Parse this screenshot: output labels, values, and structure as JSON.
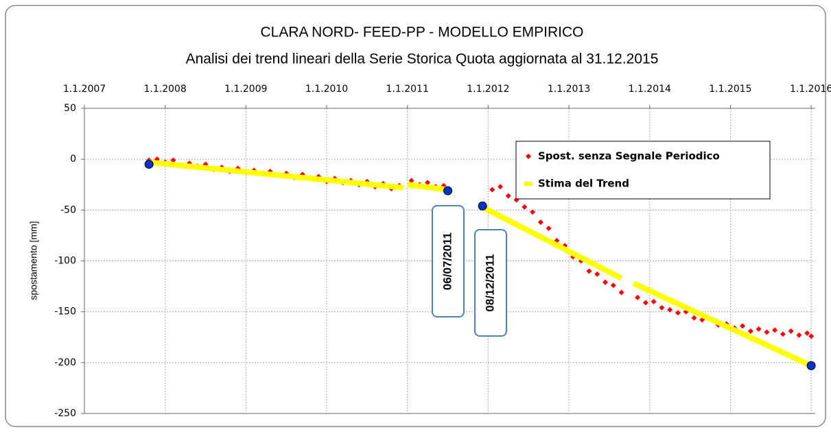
{
  "chart_data": {
    "type": "scatter",
    "title": "CLARA NORD- FEED-PP - MODELLO EMPIRICO",
    "subtitle": "Analisi dei trend lineari della Serie Storica Quota  aggiornata al 31.12.2015",
    "ylabel": "spostamento [mm]",
    "xlim": [
      2007,
      2016.05
    ],
    "ylim": [
      -250,
      50
    ],
    "xticks": [
      {
        "value": 2007,
        "label": "1.1.2007"
      },
      {
        "value": 2008,
        "label": "1.1.2008"
      },
      {
        "value": 2009,
        "label": "1.1.2009"
      },
      {
        "value": 2010,
        "label": "1.1.2010"
      },
      {
        "value": 2011,
        "label": "1.1.2011"
      },
      {
        "value": 2012,
        "label": "1.1.2012"
      },
      {
        "value": 2013,
        "label": "1.1.2013"
      },
      {
        "value": 2014,
        "label": "1.1.2014"
      },
      {
        "value": 2015,
        "label": "1.1.2015"
      },
      {
        "value": 2016,
        "label": "1.1.2016"
      }
    ],
    "yticks": [
      -250,
      -200,
      -150,
      -100,
      -50,
      0,
      50
    ],
    "grid": true,
    "legend": "upper right",
    "series": [
      {
        "name": "Spost. senza Segnale Periodico",
        "type": "scatter",
        "color": "#ff0000",
        "x": [
          2007.8,
          2007.9,
          2008.0,
          2008.1,
          2008.2,
          2008.3,
          2008.4,
          2008.5,
          2008.6,
          2008.7,
          2008.8,
          2008.9,
          2009.0,
          2009.1,
          2009.2,
          2009.3,
          2009.4,
          2009.5,
          2009.6,
          2009.7,
          2009.8,
          2009.9,
          2010.0,
          2010.1,
          2010.2,
          2010.3,
          2010.4,
          2010.5,
          2010.6,
          2010.7,
          2010.8,
          2010.9,
          2011.05,
          2011.15,
          2011.25,
          2011.35,
          2011.45,
          2012.05,
          2012.15,
          2012.25,
          2012.35,
          2012.45,
          2012.55,
          2012.65,
          2012.75,
          2012.85,
          2012.95,
          2013.05,
          2013.15,
          2013.25,
          2013.35,
          2013.45,
          2013.55,
          2013.65,
          2013.85,
          2013.95,
          2014.05,
          2014.15,
          2014.25,
          2014.35,
          2014.45,
          2014.55,
          2014.65,
          2014.75,
          2014.85,
          2014.95,
          2015.05,
          2015.15,
          2015.25,
          2015.35,
          2015.45,
          2015.55,
          2015.65,
          2015.75,
          2015.85,
          2015.95,
          2016.0
        ],
        "values": [
          -1,
          0,
          -3,
          -1,
          -6,
          -4,
          -7,
          -5,
          -10,
          -8,
          -12,
          -9,
          -13,
          -11,
          -14,
          -12,
          -16,
          -14,
          -18,
          -15,
          -19,
          -17,
          -22,
          -19,
          -23,
          -21,
          -25,
          -22,
          -27,
          -24,
          -29,
          -26,
          -21,
          -25,
          -23,
          -27,
          -26,
          -30,
          -27,
          -36,
          -40,
          -47,
          -52,
          -62,
          -68,
          -80,
          -85,
          -96,
          -100,
          -110,
          -113,
          -121,
          -124,
          -131,
          -136,
          -141,
          -140,
          -146,
          -148,
          -151,
          -150,
          -156,
          -158,
          -157,
          -163,
          -162,
          -166,
          -164,
          -169,
          -167,
          -170,
          -168,
          -172,
          -169,
          -173,
          -171,
          -174
        ]
      },
      {
        "name": "Stima del Trend",
        "type": "line",
        "color": "#ffff00",
        "x": [
          2007.8,
          2010.95,
          2010.97,
          2011.0,
          2011.5,
          2011.7,
          2011.95,
          2013.65,
          2013.72,
          2013.8,
          2016.0
        ],
        "values": [
          -3,
          -28,
          null,
          -25,
          -30,
          null,
          -48,
          -117,
          null,
          -122,
          -203
        ]
      }
    ],
    "markers": {
      "color": "#0033cc",
      "x": [
        2007.8,
        2011.5,
        2011.93,
        2016.0
      ],
      "values": [
        -5,
        -31,
        -46,
        -203
      ]
    },
    "annotations": [
      {
        "text": "06/07/2011"
      },
      {
        "text": "08/12/2011"
      }
    ]
  }
}
